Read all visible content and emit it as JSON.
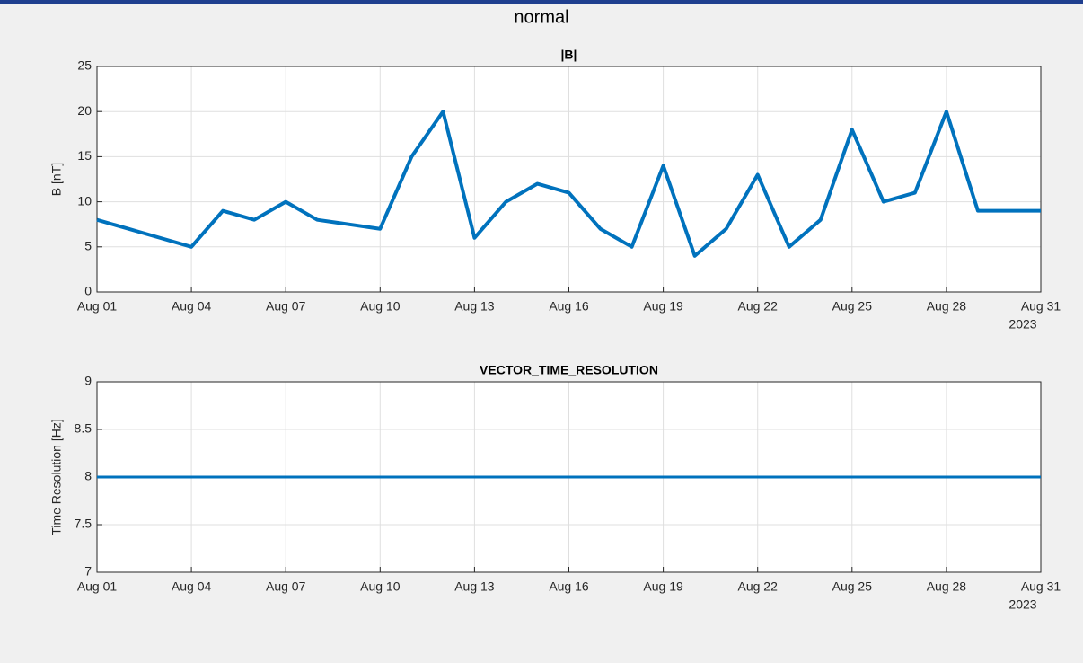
{
  "title": "normal",
  "chart_data": [
    {
      "type": "line",
      "title": "|B|",
      "y_label": "B [nT]",
      "x_year_label": "2023",
      "x": [
        "2023-08-01",
        "2023-08-02",
        "2023-08-03",
        "2023-08-04",
        "2023-08-05",
        "2023-08-06",
        "2023-08-07",
        "2023-08-08",
        "2023-08-09",
        "2023-08-10",
        "2023-08-11",
        "2023-08-12",
        "2023-08-13",
        "2023-08-14",
        "2023-08-15",
        "2023-08-16",
        "2023-08-17",
        "2023-08-18",
        "2023-08-19",
        "2023-08-20",
        "2023-08-21",
        "2023-08-22",
        "2023-08-23",
        "2023-08-24",
        "2023-08-25",
        "2023-08-26",
        "2023-08-27",
        "2023-08-28",
        "2023-08-29",
        "2023-08-30",
        "2023-08-31"
      ],
      "series": [
        {
          "name": "|B|",
          "color": "#0072bd",
          "values": [
            8,
            7,
            6,
            5,
            9,
            8,
            10,
            8,
            7.5,
            7,
            15,
            20,
            6,
            10,
            12,
            11,
            7,
            5,
            14,
            4,
            7,
            13,
            5,
            8,
            18,
            10,
            11,
            20,
            9,
            9,
            9
          ]
        }
      ],
      "xlim": [
        "2023-08-01",
        "2023-08-31"
      ],
      "xticks": [
        {
          "value": "2023-08-01",
          "label": "Aug 01"
        },
        {
          "value": "2023-08-04",
          "label": "Aug 04"
        },
        {
          "value": "2023-08-07",
          "label": "Aug 07"
        },
        {
          "value": "2023-08-10",
          "label": "Aug 10"
        },
        {
          "value": "2023-08-13",
          "label": "Aug 13"
        },
        {
          "value": "2023-08-16",
          "label": "Aug 16"
        },
        {
          "value": "2023-08-19",
          "label": "Aug 19"
        },
        {
          "value": "2023-08-22",
          "label": "Aug 22"
        },
        {
          "value": "2023-08-25",
          "label": "Aug 25"
        },
        {
          "value": "2023-08-28",
          "label": "Aug 28"
        },
        {
          "value": "2023-08-31",
          "label": "Aug 31"
        }
      ],
      "ylim": [
        0,
        25
      ],
      "yticks": [
        0,
        5,
        10,
        15,
        20,
        25
      ],
      "grid": true
    },
    {
      "type": "line",
      "title": "VECTOR_TIME_RESOLUTION",
      "y_label": "Time Resolution [Hz]",
      "x_year_label": "2023",
      "x": [
        "2023-08-01",
        "2023-08-31"
      ],
      "series": [
        {
          "name": "VECTOR_TIME_RESOLUTION",
          "color": "#0072bd",
          "values": [
            8,
            8
          ]
        }
      ],
      "xlim": [
        "2023-08-01",
        "2023-08-31"
      ],
      "xticks": [
        {
          "value": "2023-08-01",
          "label": "Aug 01"
        },
        {
          "value": "2023-08-04",
          "label": "Aug 04"
        },
        {
          "value": "2023-08-07",
          "label": "Aug 07"
        },
        {
          "value": "2023-08-10",
          "label": "Aug 10"
        },
        {
          "value": "2023-08-13",
          "label": "Aug 13"
        },
        {
          "value": "2023-08-16",
          "label": "Aug 16"
        },
        {
          "value": "2023-08-19",
          "label": "Aug 19"
        },
        {
          "value": "2023-08-22",
          "label": "Aug 22"
        },
        {
          "value": "2023-08-25",
          "label": "Aug 25"
        },
        {
          "value": "2023-08-28",
          "label": "Aug 28"
        },
        {
          "value": "2023-08-31",
          "label": "Aug 31"
        }
      ],
      "ylim": [
        7,
        9
      ],
      "yticks": [
        7,
        7.5,
        8,
        8.5,
        9
      ],
      "grid": true
    }
  ]
}
